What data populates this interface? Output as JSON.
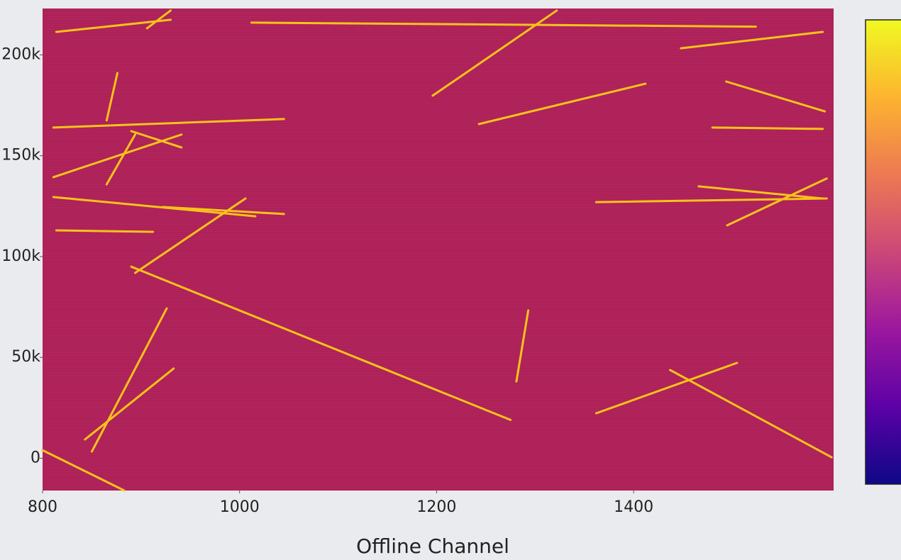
{
  "chart_data": {
    "type": "heatmap",
    "xlabel": "Offline Channel",
    "xlim": [
      800,
      1603
    ],
    "ylim": [
      -16000,
      223000
    ],
    "xticks": [
      800,
      1000,
      1200,
      1400
    ],
    "yticks": [
      0,
      {
        "value": 50000,
        "label": "50k"
      },
      {
        "value": 100000,
        "label": "100k"
      },
      {
        "value": 150000,
        "label": "150k"
      },
      {
        "value": 200000,
        "label": "200k"
      }
    ],
    "background_color": "#b3235c",
    "color": "#f7c21a",
    "colorscale": [
      "#0d0887",
      "#5c01a6",
      "#9c179e",
      "#cc4778",
      "#ed7953",
      "#fdb42f",
      "#f0f921"
    ],
    "tracks": [
      {
        "x": [
          890,
          1275
        ],
        "y": [
          95000,
          19000
        ]
      },
      {
        "x": [
          1196,
          1322
        ],
        "y": [
          179800,
          222000
        ]
      },
      {
        "x": [
          1012,
          1524
        ],
        "y": [
          216000,
          214000
        ]
      },
      {
        "x": [
          1243,
          1412
        ],
        "y": [
          165700,
          185700
        ]
      },
      {
        "x": [
          1362,
          1505
        ],
        "y": [
          22300,
          47300
        ]
      },
      {
        "x": [
          1437,
          1601
        ],
        "y": [
          43800,
          500
        ]
      },
      {
        "x": [
          800,
          883
        ],
        "y": [
          4000,
          -16000
        ]
      },
      {
        "x": [
          1362,
          1596
        ],
        "y": [
          127000,
          128800
        ]
      },
      {
        "x": [
          1495,
          1596
        ],
        "y": [
          115500,
          138700
        ]
      },
      {
        "x": [
          1466,
          1592
        ],
        "y": [
          134800,
          128800
        ]
      },
      {
        "x": [
          1494,
          1594
        ],
        "y": [
          186800,
          172000
        ]
      },
      {
        "x": [
          1448,
          1592
        ],
        "y": [
          203300,
          211400
        ]
      },
      {
        "x": [
          1293,
          1281
        ],
        "y": [
          73300,
          38100
        ]
      },
      {
        "x": [
          811,
          1045
        ],
        "y": [
          164000,
          168200
        ]
      },
      {
        "x": [
          811,
          941
        ],
        "y": [
          139400,
          160500
        ]
      },
      {
        "x": [
          890,
          941
        ],
        "y": [
          162200,
          154100
        ]
      },
      {
        "x": [
          811,
          1016
        ],
        "y": [
          129500,
          120000
        ]
      },
      {
        "x": [
          922,
          1045
        ],
        "y": [
          124600,
          121100
        ]
      },
      {
        "x": [
          814,
          912
        ],
        "y": [
          113000,
          112300
        ]
      },
      {
        "x": [
          894,
          1006
        ],
        "y": [
          91900,
          128800
        ]
      },
      {
        "x": [
          843,
          933
        ],
        "y": [
          9300,
          44500
        ]
      },
      {
        "x": [
          850,
          926
        ],
        "y": [
          3300,
          74300
        ]
      },
      {
        "x": [
          814,
          930
        ],
        "y": [
          211400,
          217400
        ]
      },
      {
        "x": [
          865,
          876
        ],
        "y": [
          167500,
          191000
        ]
      },
      {
        "x": [
          1480,
          1592
        ],
        "y": [
          164000,
          163300
        ]
      },
      {
        "x": [
          906,
          930
        ],
        "y": [
          213200,
          222000
        ]
      },
      {
        "x": [
          865,
          894
        ],
        "y": [
          135800,
          160500
        ]
      }
    ]
  }
}
